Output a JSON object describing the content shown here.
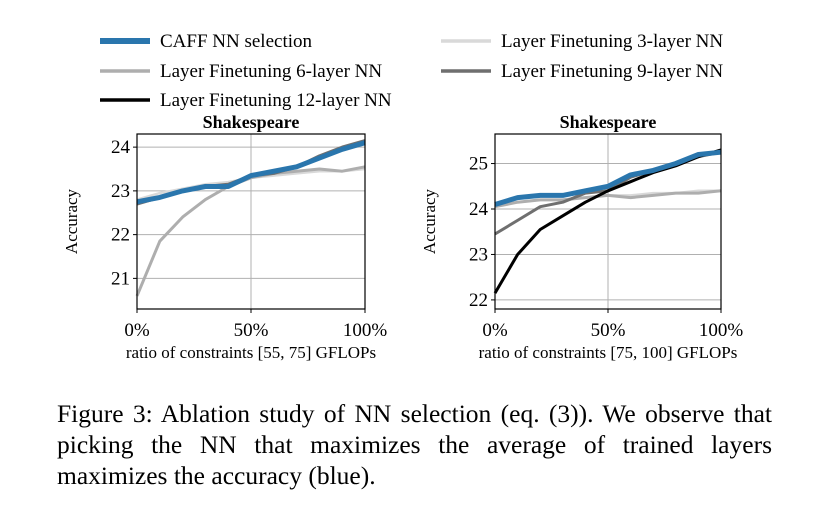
{
  "legend": [
    {
      "name": "CAFF NN selection",
      "color": "#2a76ad"
    },
    {
      "name": "Layer Finetuning 3-layer NN",
      "color": "#d9d9d9"
    },
    {
      "name": "Layer Finetuning 6-layer NN",
      "color": "#aeaeae"
    },
    {
      "name": "Layer Finetuning 9-layer NN",
      "color": "#6f6f6f"
    },
    {
      "name": "Layer Finetuning 12-layer NN",
      "color": "#000000"
    }
  ],
  "chart_data": [
    {
      "type": "line",
      "title": "Shakespeare",
      "xlabel": "ratio of constraints [55, 75] GFLOPs",
      "ylabel": "Accuracy",
      "xlim": [
        0,
        100
      ],
      "ylim": [
        20.3,
        24.3
      ],
      "xticks": [
        0,
        50,
        100
      ],
      "xticklabels": [
        "0%",
        "50%",
        "100%"
      ],
      "yticks": [
        21,
        22,
        23,
        24
      ],
      "yticklabels": [
        "21",
        "22",
        "23",
        "24"
      ],
      "grid": true,
      "x": [
        0,
        10,
        20,
        30,
        40,
        50,
        60,
        70,
        80,
        90,
        100
      ],
      "series": [
        {
          "name": "Layer Finetuning 3-layer NN",
          "color": "#d9d9d9",
          "width": 2.5,
          "values": [
            22.8,
            22.95,
            23.05,
            23.15,
            23.2,
            23.3,
            23.35,
            23.4,
            23.45,
            23.45,
            23.5
          ]
        },
        {
          "name": "Layer Finetuning 6-layer NN",
          "color": "#aeaeae",
          "width": 3,
          "values": [
            20.6,
            21.85,
            22.4,
            22.8,
            23.1,
            23.3,
            23.4,
            23.45,
            23.5,
            23.45,
            23.55
          ]
        },
        {
          "name": "Layer Finetuning 9-layer NN",
          "color": "#6f6f6f",
          "width": 3,
          "values": [
            22.7,
            22.85,
            23.0,
            23.1,
            23.15,
            23.35,
            23.4,
            23.55,
            23.8,
            24.0,
            24.15
          ]
        },
        {
          "name": "CAFF NN selection",
          "color": "#2a76ad",
          "width": 5,
          "values": [
            22.75,
            22.85,
            23.0,
            23.1,
            23.1,
            23.35,
            23.45,
            23.55,
            23.75,
            23.95,
            24.1
          ]
        }
      ]
    },
    {
      "type": "line",
      "title": "Shakespeare",
      "xlabel": "ratio of constraints [75, 100] GFLOPs",
      "ylabel": "Accuracy",
      "xlim": [
        0,
        100
      ],
      "ylim": [
        21.8,
        25.65
      ],
      "xticks": [
        0,
        50,
        100
      ],
      "xticklabels": [
        "0%",
        "50%",
        "100%"
      ],
      "yticks": [
        22,
        23,
        24,
        25
      ],
      "yticklabels": [
        "22",
        "23",
        "24",
        "25"
      ],
      "grid": true,
      "x": [
        0,
        10,
        20,
        30,
        40,
        50,
        60,
        70,
        80,
        90,
        100
      ],
      "series": [
        {
          "name": "Layer Finetuning 3-layer NN",
          "color": "#d9d9d9",
          "width": 2.5,
          "values": [
            24.1,
            24.15,
            24.2,
            24.2,
            24.25,
            24.3,
            24.3,
            24.35,
            24.35,
            24.4,
            24.4
          ]
        },
        {
          "name": "Layer Finetuning 6-layer NN",
          "color": "#aeaeae",
          "width": 3,
          "values": [
            24.05,
            24.15,
            24.2,
            24.2,
            24.25,
            24.3,
            24.25,
            24.3,
            24.35,
            24.35,
            24.4
          ]
        },
        {
          "name": "Layer Finetuning 9-layer NN",
          "color": "#6f6f6f",
          "width": 3,
          "values": [
            23.45,
            23.75,
            24.05,
            24.15,
            24.35,
            24.4,
            24.7,
            24.85,
            25.0,
            25.15,
            25.25
          ]
        },
        {
          "name": "Layer Finetuning 12-layer NN",
          "color": "#000000",
          "width": 3,
          "values": [
            22.15,
            23.0,
            23.55,
            23.85,
            24.15,
            24.4,
            24.6,
            24.8,
            24.95,
            25.15,
            25.3
          ]
        },
        {
          "name": "CAFF NN selection",
          "color": "#2a76ad",
          "width": 5,
          "values": [
            24.1,
            24.25,
            24.3,
            24.3,
            24.4,
            24.5,
            24.75,
            24.85,
            25.0,
            25.2,
            25.25
          ]
        }
      ]
    }
  ],
  "caption": "Figure 3: Ablation study of NN selection (eq. (3)). We observe that picking the NN that maximizes the average of trained layers maximizes the accuracy (blue)."
}
